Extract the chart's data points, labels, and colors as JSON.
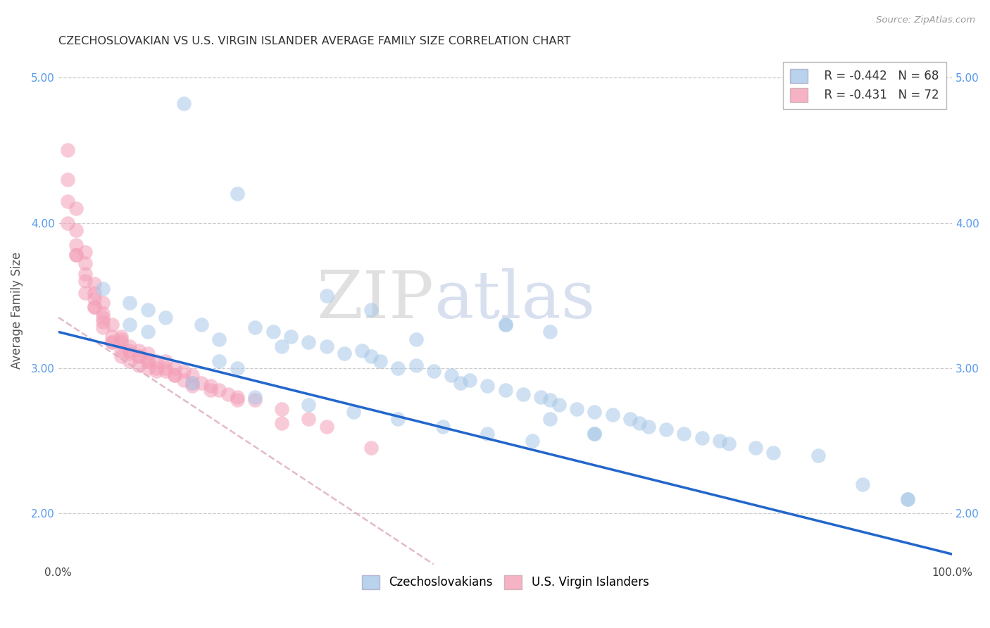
{
  "title": "CZECHOSLOVAKIAN VS U.S. VIRGIN ISLANDER AVERAGE FAMILY SIZE CORRELATION CHART",
  "source": "Source: ZipAtlas.com",
  "ylabel": "Average Family Size",
  "xlim": [
    0,
    1.0
  ],
  "ylim": [
    1.65,
    5.15
  ],
  "yticks": [
    2.0,
    3.0,
    4.0,
    5.0
  ],
  "legend_r1": "R = -0.442",
  "legend_n1": "N = 68",
  "legend_r2": "R = -0.431",
  "legend_n2": "N = 72",
  "blue_color": "#a8c8e8",
  "pink_color": "#f4a0b8",
  "blue_line_color": "#2266cc",
  "pink_line_color": "#cc8899",
  "watermark_zip": "ZIP",
  "watermark_atlas": "atlas",
  "blue_scatter_x": [
    0.14,
    0.2,
    0.05,
    0.08,
    0.1,
    0.12,
    0.16,
    0.18,
    0.22,
    0.24,
    0.26,
    0.28,
    0.3,
    0.32,
    0.34,
    0.35,
    0.36,
    0.38,
    0.4,
    0.42,
    0.44,
    0.45,
    0.46,
    0.48,
    0.5,
    0.52,
    0.54,
    0.55,
    0.56,
    0.58,
    0.6,
    0.62,
    0.64,
    0.65,
    0.66,
    0.68,
    0.7,
    0.72,
    0.74,
    0.75,
    0.78,
    0.8,
    0.85,
    0.9,
    0.95,
    0.3,
    0.35,
    0.4,
    0.25,
    0.2,
    0.15,
    0.22,
    0.28,
    0.33,
    0.38,
    0.43,
    0.48,
    0.53,
    0.5,
    0.55,
    0.6,
    0.1,
    0.08,
    0.18,
    0.5,
    0.55,
    0.6,
    0.95
  ],
  "blue_scatter_y": [
    4.82,
    4.2,
    3.55,
    3.45,
    3.4,
    3.35,
    3.3,
    3.2,
    3.28,
    3.25,
    3.22,
    3.18,
    3.15,
    3.1,
    3.12,
    3.08,
    3.05,
    3.0,
    3.02,
    2.98,
    2.95,
    2.9,
    2.92,
    2.88,
    2.85,
    2.82,
    2.8,
    2.78,
    2.75,
    2.72,
    2.7,
    2.68,
    2.65,
    2.62,
    2.6,
    2.58,
    2.55,
    2.52,
    2.5,
    2.48,
    2.45,
    2.42,
    2.4,
    2.2,
    2.1,
    3.5,
    3.4,
    3.2,
    3.15,
    3.0,
    2.9,
    2.8,
    2.75,
    2.7,
    2.65,
    2.6,
    2.55,
    2.5,
    3.3,
    2.65,
    2.55,
    3.25,
    3.3,
    3.05,
    3.3,
    3.25,
    2.55,
    2.1
  ],
  "pink_scatter_x": [
    0.01,
    0.01,
    0.01,
    0.01,
    0.02,
    0.02,
    0.02,
    0.02,
    0.03,
    0.03,
    0.03,
    0.03,
    0.04,
    0.04,
    0.04,
    0.04,
    0.05,
    0.05,
    0.05,
    0.05,
    0.06,
    0.06,
    0.06,
    0.07,
    0.07,
    0.07,
    0.07,
    0.08,
    0.08,
    0.08,
    0.09,
    0.09,
    0.09,
    0.1,
    0.1,
    0.1,
    0.11,
    0.11,
    0.12,
    0.12,
    0.13,
    0.13,
    0.14,
    0.14,
    0.15,
    0.15,
    0.16,
    0.17,
    0.18,
    0.19,
    0.2,
    0.22,
    0.25,
    0.28,
    0.3,
    0.35,
    0.12,
    0.1,
    0.08,
    0.06,
    0.04,
    0.03,
    0.02,
    0.05,
    0.07,
    0.09,
    0.11,
    0.13,
    0.15,
    0.17,
    0.2,
    0.25
  ],
  "pink_scatter_y": [
    4.5,
    4.3,
    4.15,
    4.0,
    4.1,
    3.95,
    3.85,
    3.78,
    3.8,
    3.72,
    3.65,
    3.6,
    3.58,
    3.52,
    3.48,
    3.42,
    3.45,
    3.38,
    3.32,
    3.28,
    3.3,
    3.22,
    3.18,
    3.22,
    3.18,
    3.12,
    3.08,
    3.15,
    3.1,
    3.05,
    3.12,
    3.08,
    3.02,
    3.1,
    3.05,
    3.0,
    3.05,
    2.98,
    3.05,
    2.98,
    3.0,
    2.95,
    2.98,
    2.92,
    2.95,
    2.88,
    2.9,
    2.88,
    2.85,
    2.82,
    2.8,
    2.78,
    2.72,
    2.65,
    2.6,
    2.45,
    3.0,
    3.05,
    3.12,
    3.18,
    3.42,
    3.52,
    3.78,
    3.35,
    3.2,
    3.08,
    3.0,
    2.95,
    2.9,
    2.85,
    2.78,
    2.62
  ],
  "blue_line_x0": 0.0,
  "blue_line_y0": 3.25,
  "blue_line_x1": 1.0,
  "blue_line_y1": 1.72,
  "pink_line_x0": 0.0,
  "pink_line_y0": 3.35,
  "pink_line_x1": 0.42,
  "pink_line_y1": 1.65
}
